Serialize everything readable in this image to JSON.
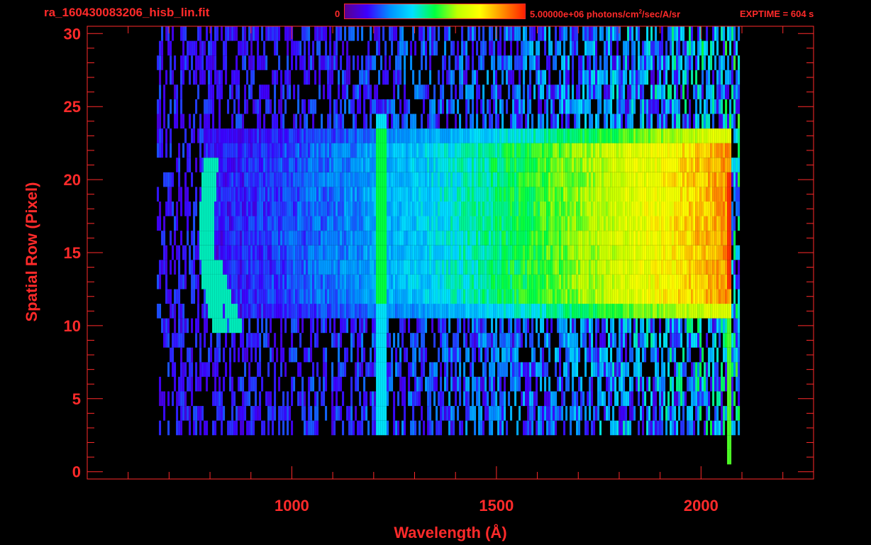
{
  "header": {
    "file_title": "ra_160430083206_hisb_lin.fit",
    "colorbar_min": "0",
    "colorbar_unit_pre": "5.00000e+06 photons/cm",
    "colorbar_unit_sup": "2",
    "colorbar_unit_post": "/sec/A/sr",
    "exptime": "EXPTIME = 604 s"
  },
  "colors": {
    "axis": "#ff2a2a",
    "background": "#000000",
    "colormap": [
      "#000000",
      "#5a008c",
      "#3c00ff",
      "#0090ff",
      "#00e0ff",
      "#00ff40",
      "#c0ff00",
      "#ffff00",
      "#ff9000",
      "#ff2000"
    ]
  },
  "chart_data": {
    "type": "heatmap",
    "title": "ra_160430083206_hisb_lin.fit",
    "xlabel": "Wavelength (Å)",
    "ylabel": "Spatial Row (Pixel)",
    "xlim": [
      500,
      2275
    ],
    "ylim": [
      -0.5,
      30.5
    ],
    "xticks": [
      1000,
      1500,
      2000
    ],
    "yticks": [
      0,
      5,
      10,
      15,
      20,
      25,
      30
    ],
    "x_minor_step": 100,
    "y_minor_step": 1,
    "colorbar": {
      "min": 0,
      "max": 5000000,
      "units": "photons/cm^2/sec/A/sr"
    },
    "grid": false,
    "data_extent_x": [
      670,
      2090
    ],
    "data_rows": [
      0,
      30
    ],
    "features": [
      {
        "name": "bright band",
        "rows": [
          11,
          23
        ],
        "x_range": [
          780,
          2070
        ],
        "intensity_trend": "rises with wavelength toward red near 2000"
      },
      {
        "name": "bright vertical line",
        "x": 1215,
        "rows": [
          3,
          24
        ]
      },
      {
        "name": "curved arc",
        "x_range": [
          770,
          900
        ],
        "rows": [
          10,
          21
        ]
      }
    ]
  }
}
